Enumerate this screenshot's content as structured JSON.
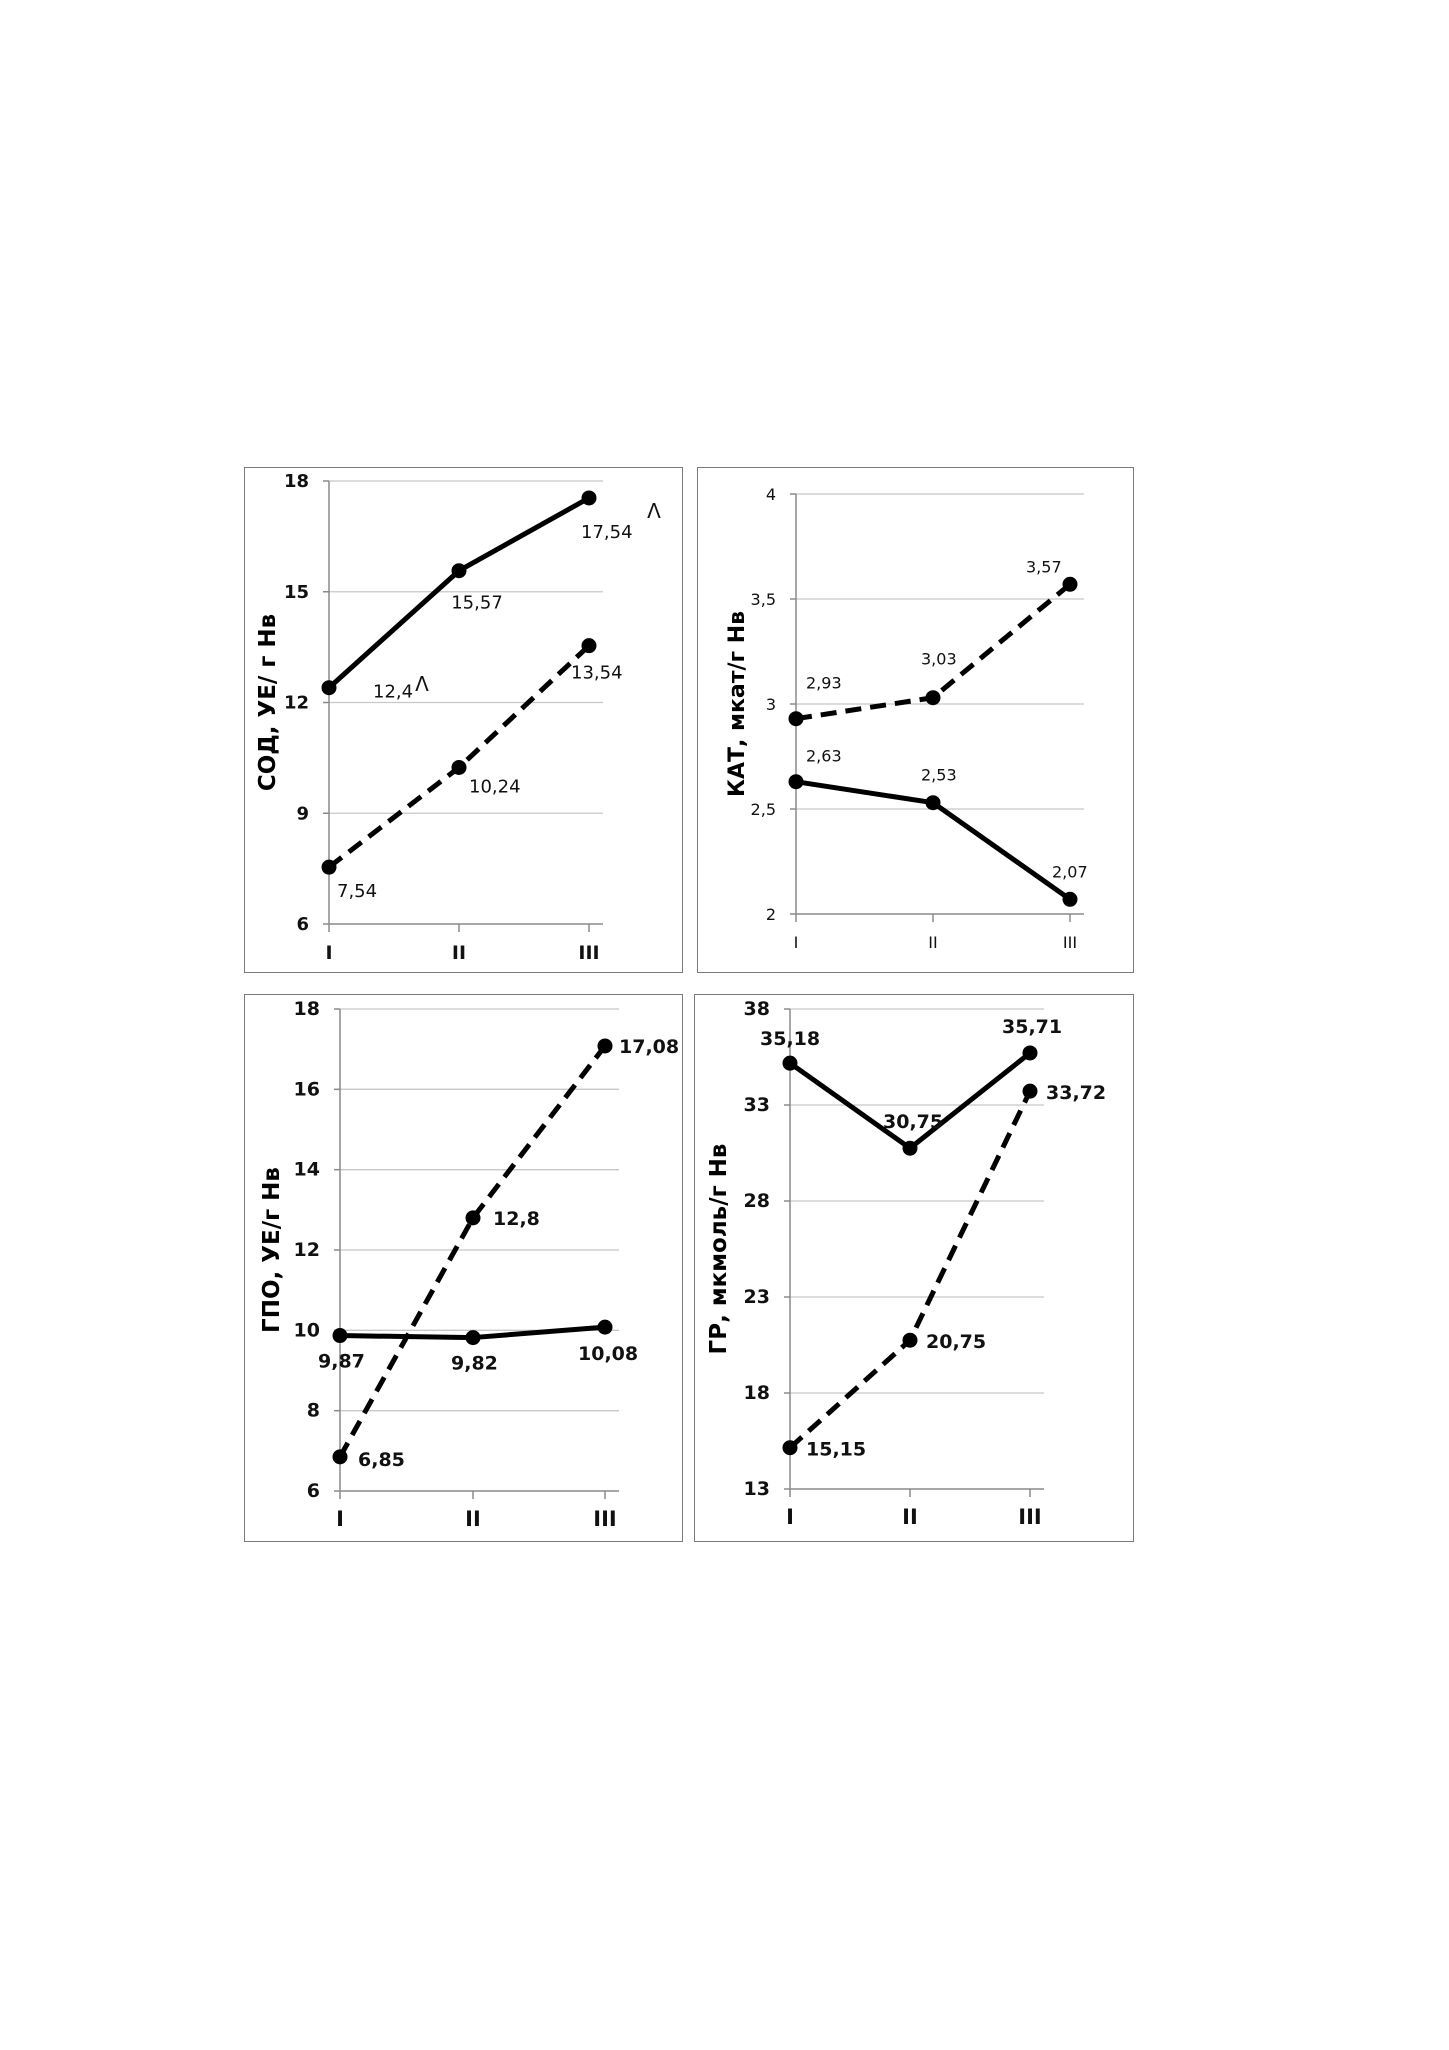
{
  "chart_data": [
    {
      "type": "line",
      "ylabel": "СОД, УЕ/ г Нв",
      "categories": [
        "I",
        "II",
        "III"
      ],
      "yticks": [
        "6",
        "9",
        "12",
        "15",
        "18"
      ],
      "ylim": [
        6,
        18
      ],
      "grid": true,
      "series": [
        {
          "style": "solid",
          "values": [
            12.4,
            15.57,
            17.54
          ],
          "labels": [
            "12,4",
            "15,57",
            "17,54"
          ]
        },
        {
          "style": "dashed",
          "values": [
            7.54,
            10.24,
            13.54
          ],
          "labels": [
            "7,54",
            "10,24",
            "13,54"
          ]
        }
      ],
      "annotations": [
        "Λ",
        "Λ"
      ]
    },
    {
      "type": "line",
      "ylabel": "КАТ, мкат/г Нв",
      "categories": [
        "I",
        "II",
        "III"
      ],
      "yticks": [
        "2",
        "2,5",
        "3",
        "3,5",
        "4"
      ],
      "ylim": [
        2,
        4
      ],
      "grid": true,
      "series": [
        {
          "style": "solid",
          "values": [
            2.63,
            2.53,
            2.07
          ],
          "labels": [
            "2,63",
            "2,53",
            "2,07"
          ]
        },
        {
          "style": "dashed",
          "values": [
            2.93,
            3.03,
            3.57
          ],
          "labels": [
            "2,93",
            "3,03",
            "3,57"
          ]
        }
      ]
    },
    {
      "type": "line",
      "ylabel": "ГПО, УЕ/г Нв",
      "categories": [
        "I",
        "II",
        "III"
      ],
      "yticks": [
        "6",
        "8",
        "10",
        "12",
        "14",
        "16",
        "18"
      ],
      "ylim": [
        6,
        18
      ],
      "grid": true,
      "series": [
        {
          "style": "solid",
          "values": [
            9.87,
            9.82,
            10.08
          ],
          "labels": [
            "9,87",
            "9,82",
            "10,08"
          ]
        },
        {
          "style": "dashed",
          "values": [
            6.85,
            12.8,
            17.08
          ],
          "labels": [
            "6,85",
            "12,8",
            "17,08"
          ]
        }
      ]
    },
    {
      "type": "line",
      "ylabel": "ГР, мкмоль/г Нв",
      "categories": [
        "I",
        "II",
        "III"
      ],
      "yticks": [
        "13",
        "18",
        "23",
        "28",
        "33",
        "38"
      ],
      "ylim": [
        13,
        38
      ],
      "grid": true,
      "series": [
        {
          "style": "solid",
          "values": [
            35.18,
            30.75,
            35.71
          ],
          "labels": [
            "35,18",
            "30,75",
            "35,71"
          ]
        },
        {
          "style": "dashed",
          "values": [
            15.15,
            20.75,
            33.72
          ],
          "labels": [
            "15,15",
            "20,75",
            "33,72"
          ]
        }
      ]
    }
  ]
}
